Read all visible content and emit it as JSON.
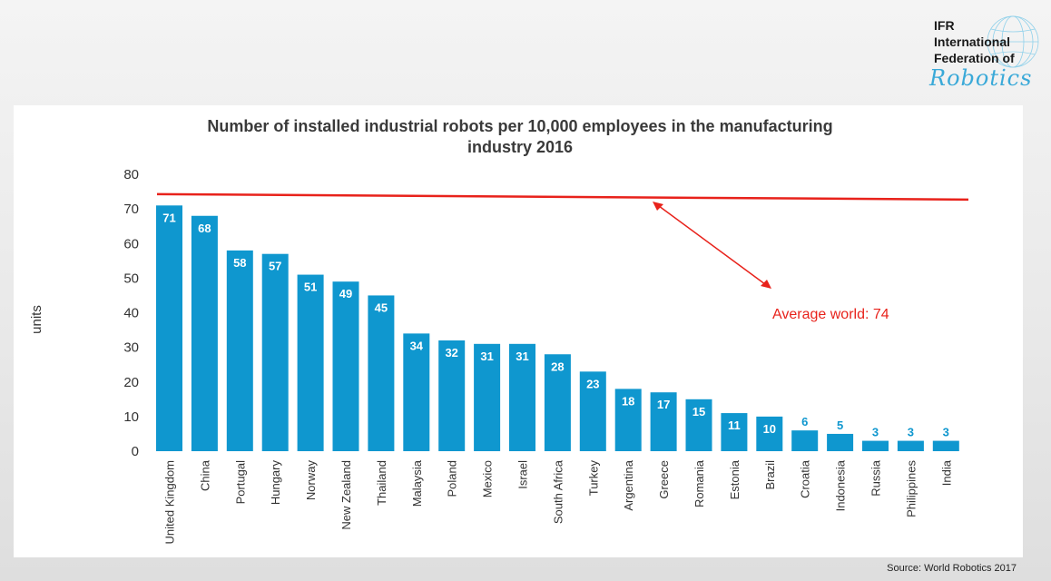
{
  "logo": {
    "line1": "IFR",
    "line2": "International",
    "line3": "Federation of",
    "line4": "Robotics"
  },
  "source": "Source: World Robotics 2017",
  "chart_data": {
    "type": "bar",
    "title": "Number of installed industrial robots per 10,000 employees in the manufacturing industry 2016",
    "title_lines": [
      "Number  of  installed  industrial  robots  per  10,000  employees  in  the  manufacturing",
      "industry  2016"
    ],
    "ylabel": "units",
    "xlabel": "",
    "ylim": [
      0,
      80
    ],
    "yticks": [
      0,
      10,
      20,
      30,
      40,
      50,
      60,
      70,
      80
    ],
    "grid": false,
    "bar_color": "#0f97cf",
    "label_color": "#ffffff",
    "small_label_color": "#0f97cf",
    "categories": [
      "United Kingdom",
      "China",
      "Portugal",
      "Hungary",
      "Norway",
      "New Zealand",
      "Thailand",
      "Malaysia",
      "Poland",
      "Mexico",
      "Israel",
      "South Africa",
      "Turkey",
      "Argentina",
      "Greece",
      "Romania",
      "Estonia",
      "Brazil",
      "Croatia",
      "Indonesia",
      "Russia",
      "Philippines",
      "India"
    ],
    "values": [
      71,
      68,
      58,
      57,
      51,
      49,
      45,
      34,
      32,
      31,
      31,
      28,
      23,
      18,
      17,
      15,
      11,
      10,
      6,
      5,
      3,
      3,
      3
    ],
    "reference_line": {
      "value": 74,
      "label": "Average world: 74",
      "color": "#e8221b"
    }
  }
}
